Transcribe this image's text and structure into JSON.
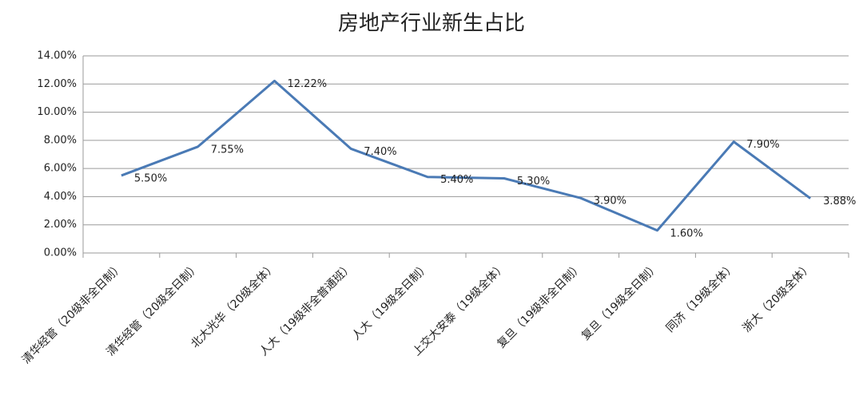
{
  "chart_data": {
    "type": "line",
    "title": "房地产行业新生占比",
    "categories": [
      "清华经管（20级非全日制）",
      "清华经管（20级全日制）",
      "北大光华（20级全体）",
      "人大（19级非全普通班）",
      "人大（19级全日制）",
      "上交大安泰（19级全体）",
      "复旦（19级非全日制）",
      "复旦（19级全日制）",
      "同济（19级全体）",
      "浙大（20级全体）"
    ],
    "series": [
      {
        "name": "房地产行业新生占比",
        "color": "#4a7ab5",
        "values": [
          5.5,
          7.55,
          12.22,
          7.4,
          5.4,
          5.3,
          3.9,
          1.6,
          7.9,
          3.88
        ],
        "value_labels": [
          "5.50%",
          "7.55%",
          "12.22%",
          "7.40%",
          "5.40%",
          "5.30%",
          "3.90%",
          "1.60%",
          "7.90%",
          "3.88%"
        ]
      }
    ],
    "ylim": [
      0,
      14
    ],
    "yticks": [
      {
        "value": 0,
        "label": "0.00%"
      },
      {
        "value": 2,
        "label": "2.00%"
      },
      {
        "value": 4,
        "label": "4.00%"
      },
      {
        "value": 6,
        "label": "6.00%"
      },
      {
        "value": 8,
        "label": "8.00%"
      },
      {
        "value": 10,
        "label": "10.00%"
      },
      {
        "value": 12,
        "label": "12.00%"
      },
      {
        "value": 14,
        "label": "14.00%"
      }
    ],
    "grid": true
  }
}
